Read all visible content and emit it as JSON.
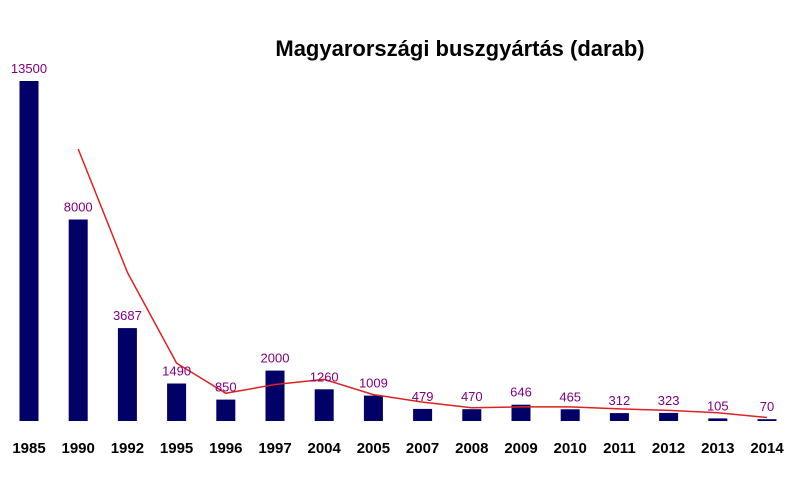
{
  "chart_data": {
    "type": "bar",
    "title": "Magyarországi buszgyártás (darab)",
    "xlabel": "",
    "ylabel": "",
    "categories": [
      "1985",
      "1990",
      "1992",
      "1995",
      "1996",
      "1997",
      "2004",
      "2005",
      "2007",
      "2008",
      "2009",
      "2010",
      "2011",
      "2012",
      "2013",
      "2014"
    ],
    "series": [
      {
        "values": [
          13500,
          8000,
          3687,
          1490,
          850,
          2000,
          1260,
          1009,
          479,
          470,
          646,
          465,
          312,
          323,
          105,
          70
        ]
      }
    ],
    "trendline": {
      "type": "line",
      "start_category": "1990",
      "values": [
        10800,
        5900,
        2300,
        1100,
        1450,
        1650,
        1050,
        750,
        530,
        560,
        560,
        480,
        420,
        330,
        140
      ]
    },
    "ylim": [
      0,
      13500
    ],
    "grid": false,
    "legend": "none",
    "colors": {
      "bar": "#000066",
      "trendline": "#dd2222",
      "data_label": "#800080",
      "tick_label": "#000000",
      "title": "#000000"
    }
  }
}
